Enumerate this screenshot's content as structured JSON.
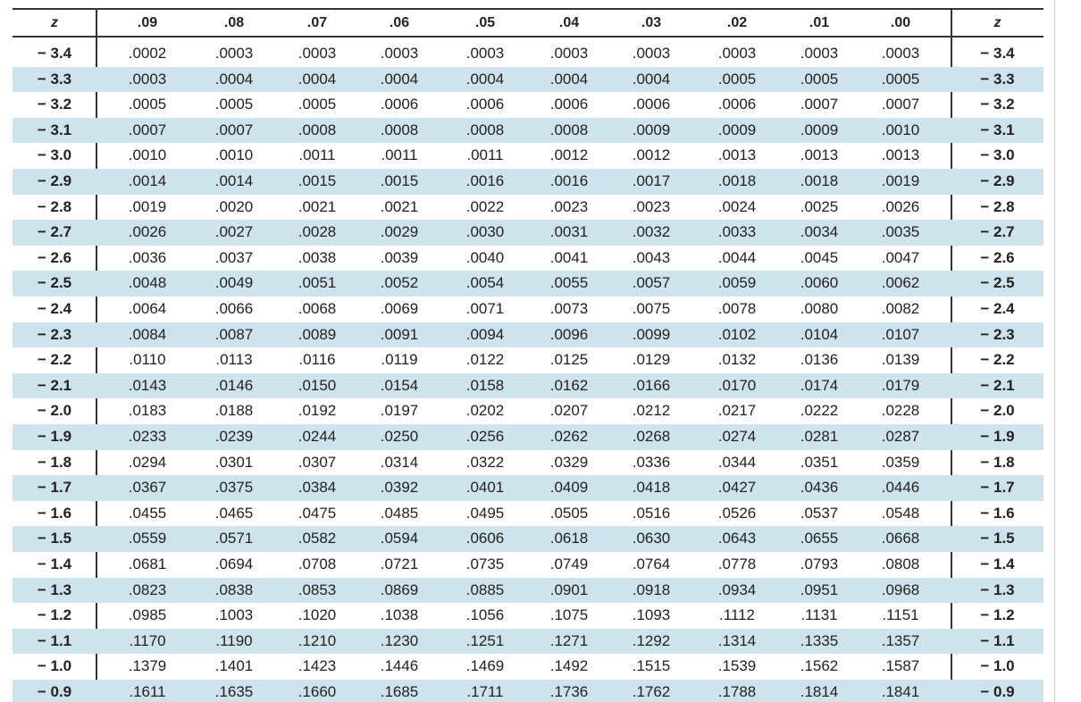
{
  "table": {
    "z_label": "z",
    "columns": [
      ".09",
      ".08",
      ".07",
      ".06",
      ".05",
      ".04",
      ".03",
      ".02",
      ".01",
      ".00"
    ],
    "rows": [
      {
        "z": "− 3.4",
        "values": [
          ".0002",
          ".0003",
          ".0003",
          ".0003",
          ".0003",
          ".0003",
          ".0003",
          ".0003",
          ".0003",
          ".0003"
        ]
      },
      {
        "z": "− 3.3",
        "values": [
          ".0003",
          ".0004",
          ".0004",
          ".0004",
          ".0004",
          ".0004",
          ".0004",
          ".0005",
          ".0005",
          ".0005"
        ]
      },
      {
        "z": "− 3.2",
        "values": [
          ".0005",
          ".0005",
          ".0005",
          ".0006",
          ".0006",
          ".0006",
          ".0006",
          ".0006",
          ".0007",
          ".0007"
        ]
      },
      {
        "z": "− 3.1",
        "values": [
          ".0007",
          ".0007",
          ".0008",
          ".0008",
          ".0008",
          ".0008",
          ".0009",
          ".0009",
          ".0009",
          ".0010"
        ]
      },
      {
        "z": "− 3.0",
        "values": [
          ".0010",
          ".0010",
          ".0011",
          ".0011",
          ".0011",
          ".0012",
          ".0012",
          ".0013",
          ".0013",
          ".0013"
        ]
      },
      {
        "z": "− 2.9",
        "values": [
          ".0014",
          ".0014",
          ".0015",
          ".0015",
          ".0016",
          ".0016",
          ".0017",
          ".0018",
          ".0018",
          ".0019"
        ]
      },
      {
        "z": "− 2.8",
        "values": [
          ".0019",
          ".0020",
          ".0021",
          ".0021",
          ".0022",
          ".0023",
          ".0023",
          ".0024",
          ".0025",
          ".0026"
        ]
      },
      {
        "z": "− 2.7",
        "values": [
          ".0026",
          ".0027",
          ".0028",
          ".0029",
          ".0030",
          ".0031",
          ".0032",
          ".0033",
          ".0034",
          ".0035"
        ]
      },
      {
        "z": "− 2.6",
        "values": [
          ".0036",
          ".0037",
          ".0038",
          ".0039",
          ".0040",
          ".0041",
          ".0043",
          ".0044",
          ".0045",
          ".0047"
        ]
      },
      {
        "z": "− 2.5",
        "values": [
          ".0048",
          ".0049",
          ".0051",
          ".0052",
          ".0054",
          ".0055",
          ".0057",
          ".0059",
          ".0060",
          ".0062"
        ]
      },
      {
        "z": "− 2.4",
        "values": [
          ".0064",
          ".0066",
          ".0068",
          ".0069",
          ".0071",
          ".0073",
          ".0075",
          ".0078",
          ".0080",
          ".0082"
        ]
      },
      {
        "z": "− 2.3",
        "values": [
          ".0084",
          ".0087",
          ".0089",
          ".0091",
          ".0094",
          ".0096",
          ".0099",
          ".0102",
          ".0104",
          ".0107"
        ]
      },
      {
        "z": "− 2.2",
        "values": [
          ".0110",
          ".0113",
          ".0116",
          ".0119",
          ".0122",
          ".0125",
          ".0129",
          ".0132",
          ".0136",
          ".0139"
        ]
      },
      {
        "z": "− 2.1",
        "values": [
          ".0143",
          ".0146",
          ".0150",
          ".0154",
          ".0158",
          ".0162",
          ".0166",
          ".0170",
          ".0174",
          ".0179"
        ]
      },
      {
        "z": "− 2.0",
        "values": [
          ".0183",
          ".0188",
          ".0192",
          ".0197",
          ".0202",
          ".0207",
          ".0212",
          ".0217",
          ".0222",
          ".0228"
        ]
      },
      {
        "z": "− 1.9",
        "values": [
          ".0233",
          ".0239",
          ".0244",
          ".0250",
          ".0256",
          ".0262",
          ".0268",
          ".0274",
          ".0281",
          ".0287"
        ]
      },
      {
        "z": "− 1.8",
        "values": [
          ".0294",
          ".0301",
          ".0307",
          ".0314",
          ".0322",
          ".0329",
          ".0336",
          ".0344",
          ".0351",
          ".0359"
        ]
      },
      {
        "z": "− 1.7",
        "values": [
          ".0367",
          ".0375",
          ".0384",
          ".0392",
          ".0401",
          ".0409",
          ".0418",
          ".0427",
          ".0436",
          ".0446"
        ]
      },
      {
        "z": "− 1.6",
        "values": [
          ".0455",
          ".0465",
          ".0475",
          ".0485",
          ".0495",
          ".0505",
          ".0516",
          ".0526",
          ".0537",
          ".0548"
        ]
      },
      {
        "z": "− 1.5",
        "values": [
          ".0559",
          ".0571",
          ".0582",
          ".0594",
          ".0606",
          ".0618",
          ".0630",
          ".0643",
          ".0655",
          ".0668"
        ]
      },
      {
        "z": "− 1.4",
        "values": [
          ".0681",
          ".0694",
          ".0708",
          ".0721",
          ".0735",
          ".0749",
          ".0764",
          ".0778",
          ".0793",
          ".0808"
        ]
      },
      {
        "z": "− 1.3",
        "values": [
          ".0823",
          ".0838",
          ".0853",
          ".0869",
          ".0885",
          ".0901",
          ".0918",
          ".0934",
          ".0951",
          ".0968"
        ]
      },
      {
        "z": "− 1.2",
        "values": [
          ".0985",
          ".1003",
          ".1020",
          ".1038",
          ".1056",
          ".1075",
          ".1093",
          ".1112",
          ".1131",
          ".1151"
        ]
      },
      {
        "z": "− 1.1",
        "values": [
          ".1170",
          ".1190",
          ".1210",
          ".1230",
          ".1251",
          ".1271",
          ".1292",
          ".1314",
          ".1335",
          ".1357"
        ]
      },
      {
        "z": "− 1.0",
        "values": [
          ".1379",
          ".1401",
          ".1423",
          ".1446",
          ".1469",
          ".1492",
          ".1515",
          ".1539",
          ".1562",
          ".1587"
        ]
      },
      {
        "z": "− 0.9",
        "values": [
          ".1611",
          ".1635",
          ".1660",
          ".1685",
          ".1711",
          ".1736",
          ".1762",
          ".1788",
          ".1814",
          ".1841"
        ]
      }
    ]
  }
}
